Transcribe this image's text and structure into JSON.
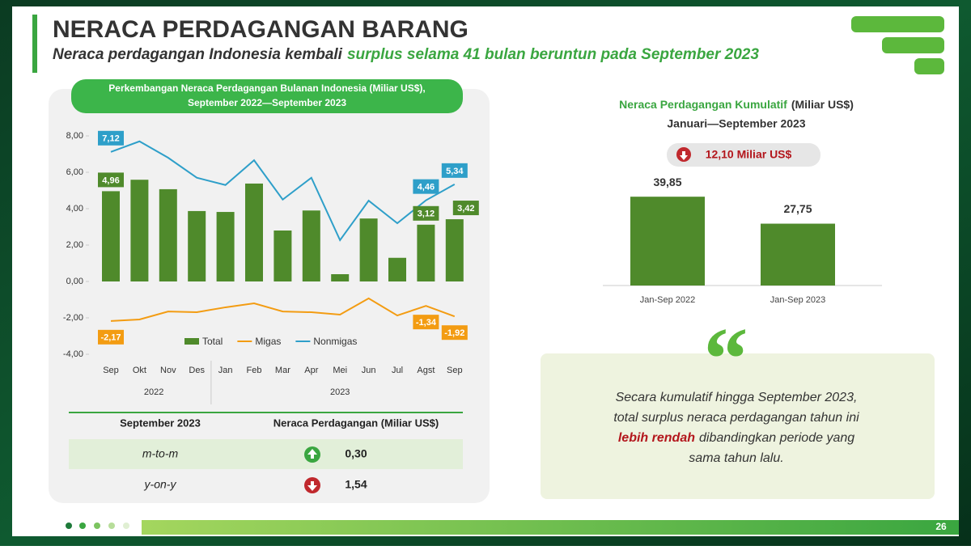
{
  "header": {
    "title": "NERACA PERDAGANGAN BARANG",
    "subtitle": [
      "Neraca perdagangan Indonesia kembali",
      "surplus selama 41 bulan beruntun pada September 2023"
    ]
  },
  "chart_data": [
    {
      "type": "combo",
      "title": "Perkembangan Neraca Perdagangan Bulanan Indonesia (Miliar US$),",
      "subtitle": "September 2022—September 2023",
      "categories": [
        "Sep",
        "Okt",
        "Nov",
        "Des",
        "Jan",
        "Feb",
        "Mar",
        "Apr",
        "Mei",
        "Jun",
        "Jul",
        "Agst",
        "Sep"
      ],
      "x_groups": [
        {
          "label": "2022",
          "span": 4
        },
        {
          "label": "2023",
          "span": 9
        }
      ],
      "series": [
        {
          "name": "Total",
          "type": "bar",
          "color": "#4f8a2b",
          "values": [
            4.96,
            5.59,
            5.07,
            3.87,
            3.82,
            5.38,
            2.8,
            3.9,
            0.4,
            3.46,
            1.3,
            3.12,
            3.42
          ],
          "value_labels": [
            "4,96",
            null,
            null,
            null,
            null,
            null,
            null,
            null,
            null,
            null,
            null,
            "3,12",
            "3,42"
          ]
        },
        {
          "name": "Migas",
          "type": "line",
          "color": "#f39c12",
          "values": [
            -2.17,
            -2.09,
            -1.65,
            -1.69,
            -1.42,
            -1.2,
            -1.65,
            -1.69,
            -1.82,
            -0.93,
            -1.87,
            -1.34,
            -1.92
          ],
          "value_labels": [
            "-2,17",
            null,
            null,
            null,
            null,
            null,
            null,
            null,
            null,
            null,
            null,
            "-1,34",
            "-1,92"
          ]
        },
        {
          "name": "Nonmigas",
          "type": "line",
          "color": "#2e9fc9",
          "values": [
            7.12,
            7.7,
            6.8,
            5.7,
            5.3,
            6.66,
            4.5,
            5.7,
            2.27,
            4.44,
            3.2,
            4.46,
            5.34
          ],
          "value_labels": [
            "7,12",
            null,
            null,
            null,
            null,
            null,
            null,
            null,
            null,
            null,
            null,
            "4,46",
            "5,34"
          ]
        }
      ],
      "ylim": [
        -4,
        8
      ],
      "yticks": [
        {
          "value": -4,
          "label": "-4,00"
        },
        {
          "value": -2,
          "label": "-2,00"
        },
        {
          "value": 0,
          "label": "0,00"
        },
        {
          "value": 2,
          "label": "2,00"
        },
        {
          "value": 4,
          "label": "4,00"
        },
        {
          "value": 6,
          "label": "6,00"
        },
        {
          "value": 8,
          "label": "8,00"
        }
      ],
      "grid": false,
      "legend": "bottom"
    },
    {
      "type": "bar",
      "title": "Neraca Perdagangan Kumulatif",
      "title_unit": "(Miliar US$)",
      "subtitle": "Januari—September 2023",
      "annotation": "12,10 Miliar US$",
      "categories": [
        "Jan-Sep 2022",
        "Jan-Sep 2023"
      ],
      "values": [
        39.85,
        27.75
      ],
      "value_labels": [
        "39,85",
        "27,75"
      ],
      "color": "#4f8a2b",
      "ylim": [
        0,
        45
      ]
    }
  ],
  "table": {
    "header": [
      "September 2023",
      "Neraca Perdagangan (Miliar US$)"
    ],
    "rows": [
      [
        "m-to-m",
        "0,30"
      ],
      [
        "y-on-y",
        "1,54"
      ]
    ]
  },
  "note": [
    "Secara kumulatif hingga September 2023,",
    "total surplus neraca perdagangan tahun ini",
    "lebih rendah",
    "dibandingkan periode yang",
    "sama tahun lalu."
  ],
  "page_number": "26"
}
